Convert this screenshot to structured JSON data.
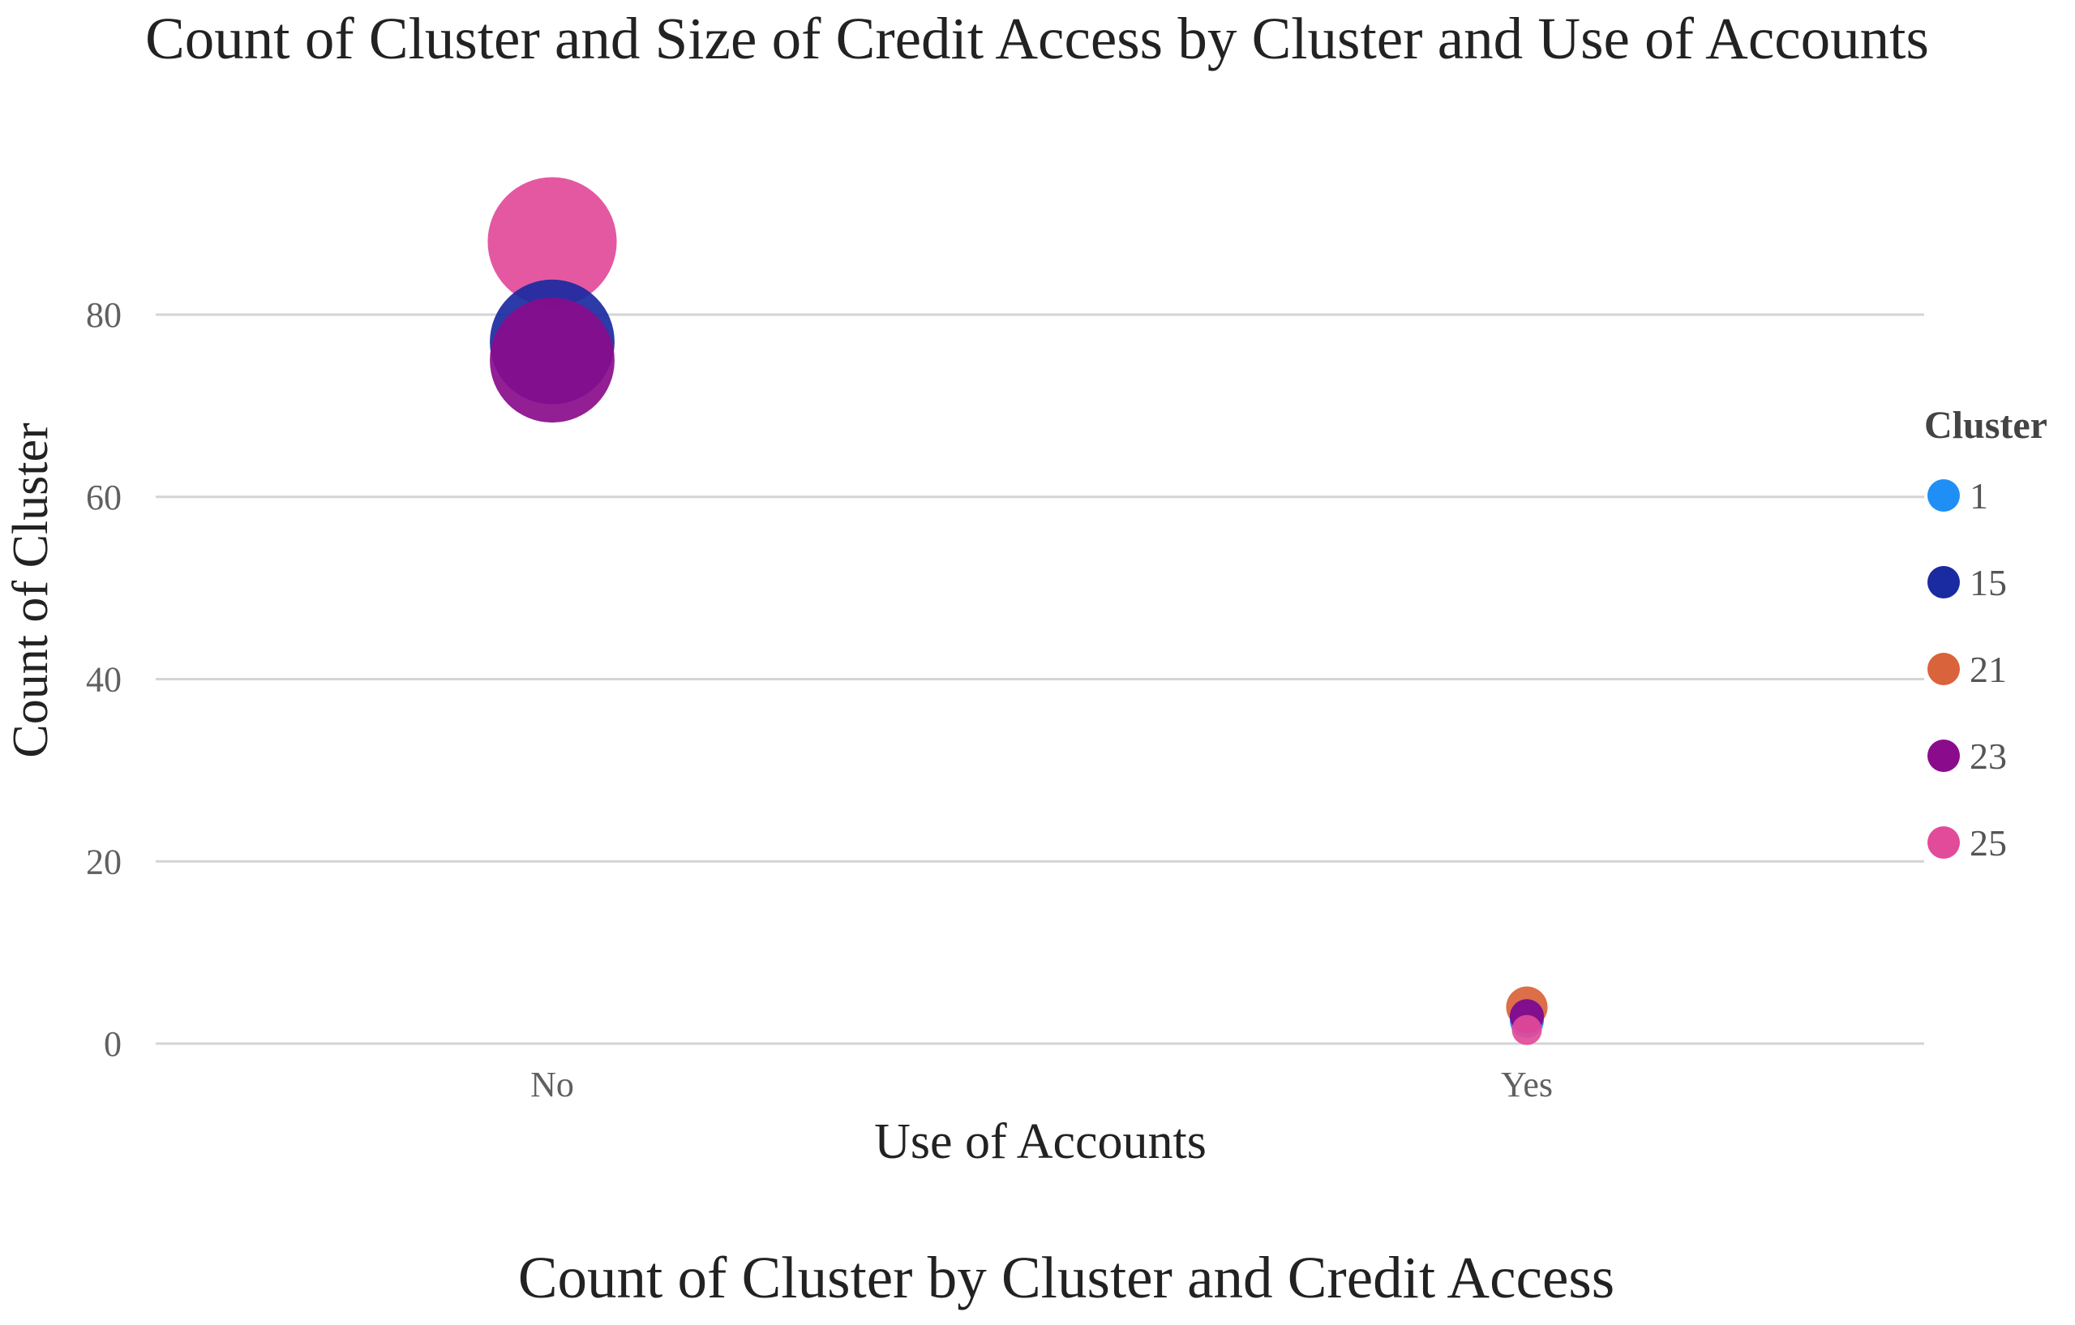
{
  "chart_data": {
    "type": "scatter",
    "title": "Count of Cluster and Size of Credit Access by Cluster and Use of Accounts",
    "subtitle": "Count of Cluster by Cluster and Credit Access",
    "xlabel": "Use of Accounts",
    "ylabel": "Count of Cluster",
    "categories": [
      "No",
      "Yes"
    ],
    "yticks": [
      0,
      20,
      40,
      60,
      80
    ],
    "ylim": [
      0,
      100
    ],
    "grid": true,
    "legend": {
      "title": "Cluster",
      "placement": "right"
    },
    "series": [
      {
        "name": "1",
        "color": "#1f8ff5",
        "points": [
          {
            "x": "Yes",
            "y": 2.5,
            "size": 1.0
          }
        ]
      },
      {
        "name": "15",
        "color": "#1a2aa0",
        "points": [
          {
            "x": "No",
            "y": 77,
            "size": 37.0
          },
          {
            "x": "Yes",
            "y": 3,
            "size": 1.0
          }
        ]
      },
      {
        "name": "21",
        "color": "#d9633a",
        "points": [
          {
            "x": "Yes",
            "y": 4,
            "size": 2.0
          }
        ]
      },
      {
        "name": "23",
        "color": "#8a0c8c",
        "points": [
          {
            "x": "No",
            "y": 75,
            "size": 37.0
          },
          {
            "x": "Yes",
            "y": 3,
            "size": 1.0
          }
        ]
      },
      {
        "name": "25",
        "color": "#e24a9a",
        "points": [
          {
            "x": "No",
            "y": 88,
            "size": 40.0
          },
          {
            "x": "Yes",
            "y": 1.5,
            "size": 0.6
          }
        ]
      }
    ]
  }
}
